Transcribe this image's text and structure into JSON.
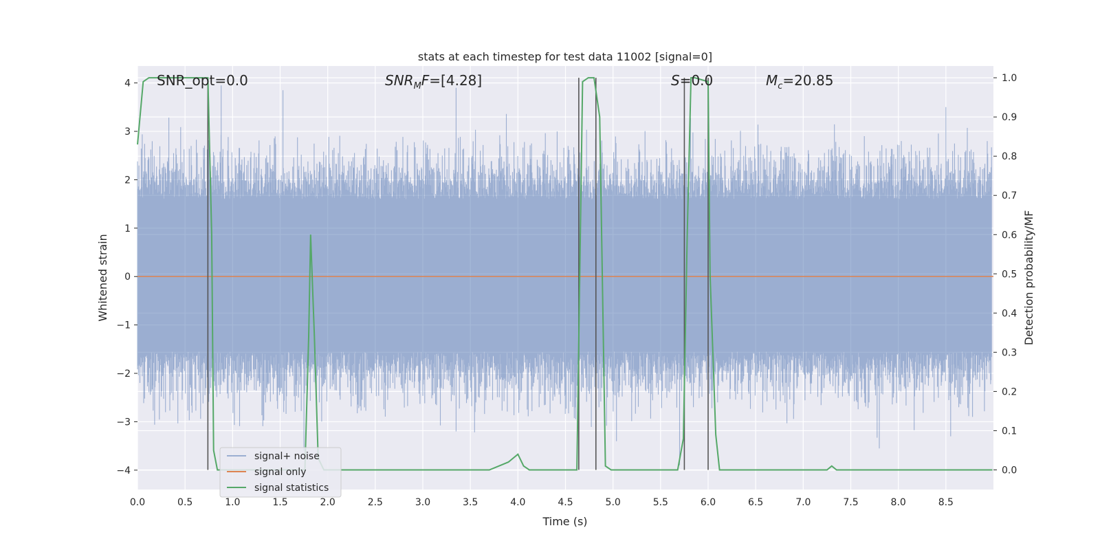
{
  "chart_data": {
    "type": "line",
    "title": "stats at each timestep for test data 11002 [signal=0]",
    "xlabel": "Time (s)",
    "ylabel": "Whitened strain",
    "ylabel_right": "Detection probability/MF",
    "xlim": [
      0.0,
      9.0
    ],
    "ylim": [
      -4.4,
      4.35
    ],
    "ylim_right": [
      -0.05,
      1.03
    ],
    "x_ticks": [
      "0.0",
      "0.5",
      "1.0",
      "1.5",
      "2.0",
      "2.5",
      "3.0",
      "3.5",
      "4.0",
      "4.5",
      "5.0",
      "5.5",
      "6.0",
      "6.5",
      "7.0",
      "7.5",
      "8.0",
      "8.5"
    ],
    "y_ticks": [
      "−4",
      "−3",
      "−2",
      "−1",
      "0",
      "1",
      "2",
      "3",
      "4"
    ],
    "y_ticks_right": [
      "0.0",
      "0.1",
      "0.2",
      "0.3",
      "0.4",
      "0.5",
      "0.6",
      "0.7",
      "0.8",
      "0.9",
      "1.0"
    ],
    "grid": true,
    "legend_position": "lower-left",
    "annotations": [
      {
        "text": "SNR_opt=0.0",
        "x": 0.2,
        "y": 4.1
      },
      {
        "text": "SNR_MF=[4.28]",
        "x": 2.6,
        "y": 4.1
      },
      {
        "text": "S=0.0",
        "x": 5.6,
        "y": 4.1
      },
      {
        "text": "M_c=20.85",
        "x": 6.6,
        "y": 4.1
      }
    ],
    "series": [
      {
        "name": "signal+ noise",
        "color": "#4c72b0",
        "description_values": "noise, approx gaussian whitened strain",
        "typical_band": [
          -2.0,
          2.3
        ],
        "peaks": [
          {
            "x": 0.88,
            "y": 3.95
          },
          {
            "x": 1.53,
            "y": 3.85
          },
          {
            "x": 1.75,
            "y": -3.6
          },
          {
            "x": 3.35,
            "y": 3.9
          },
          {
            "x": 3.35,
            "y": -3.2
          },
          {
            "x": 5.7,
            "y": -3.9
          },
          {
            "x": 7.8,
            "y": -3.55
          },
          {
            "x": 8.5,
            "y": 3.5
          },
          {
            "x": 8.55,
            "y": -3.3
          }
        ]
      },
      {
        "name": "signal only",
        "color": "#dd8452",
        "x": [
          0.0,
          9.0
        ],
        "y": [
          0.0,
          0.0
        ]
      },
      {
        "name": "signal statistics",
        "color": "#55a868",
        "axis": "right",
        "x": [
          0.0,
          0.06,
          0.12,
          0.6,
          0.68,
          0.74,
          0.78,
          0.8,
          0.84,
          0.9,
          1.0,
          1.5,
          1.7,
          1.76,
          1.8,
          1.82,
          1.86,
          1.9,
          1.96,
          2.0,
          3.7,
          3.8,
          3.9,
          4.0,
          4.06,
          4.12,
          4.5,
          4.58,
          4.62,
          4.68,
          4.74,
          4.8,
          4.86,
          4.92,
          4.98,
          5.6,
          5.68,
          5.74,
          5.78,
          5.82,
          5.86,
          6.0,
          6.02,
          6.08,
          6.12,
          6.2,
          7.2,
          7.25,
          7.3,
          7.35,
          7.4,
          8.99
        ],
        "y": [
          0.83,
          0.99,
          1.0,
          1.0,
          1.0,
          1.0,
          0.6,
          0.05,
          0.0,
          0.0,
          0.0,
          0.0,
          0.0,
          0.0,
          0.34,
          0.6,
          0.34,
          0.03,
          0.0,
          0.0,
          0.0,
          0.01,
          0.02,
          0.04,
          0.01,
          0.0,
          0.0,
          0.0,
          0.0,
          0.99,
          1.0,
          1.0,
          0.9,
          0.01,
          0.0,
          0.0,
          0.0,
          0.08,
          0.6,
          1.0,
          1.0,
          0.99,
          0.5,
          0.09,
          0.0,
          0.0,
          0.0,
          0.0,
          0.01,
          0.0,
          0.0,
          0.0
        ]
      }
    ],
    "vertical_lines_x": [
      0.74,
      4.64,
      4.82,
      5.75,
      6.0
    ]
  }
}
